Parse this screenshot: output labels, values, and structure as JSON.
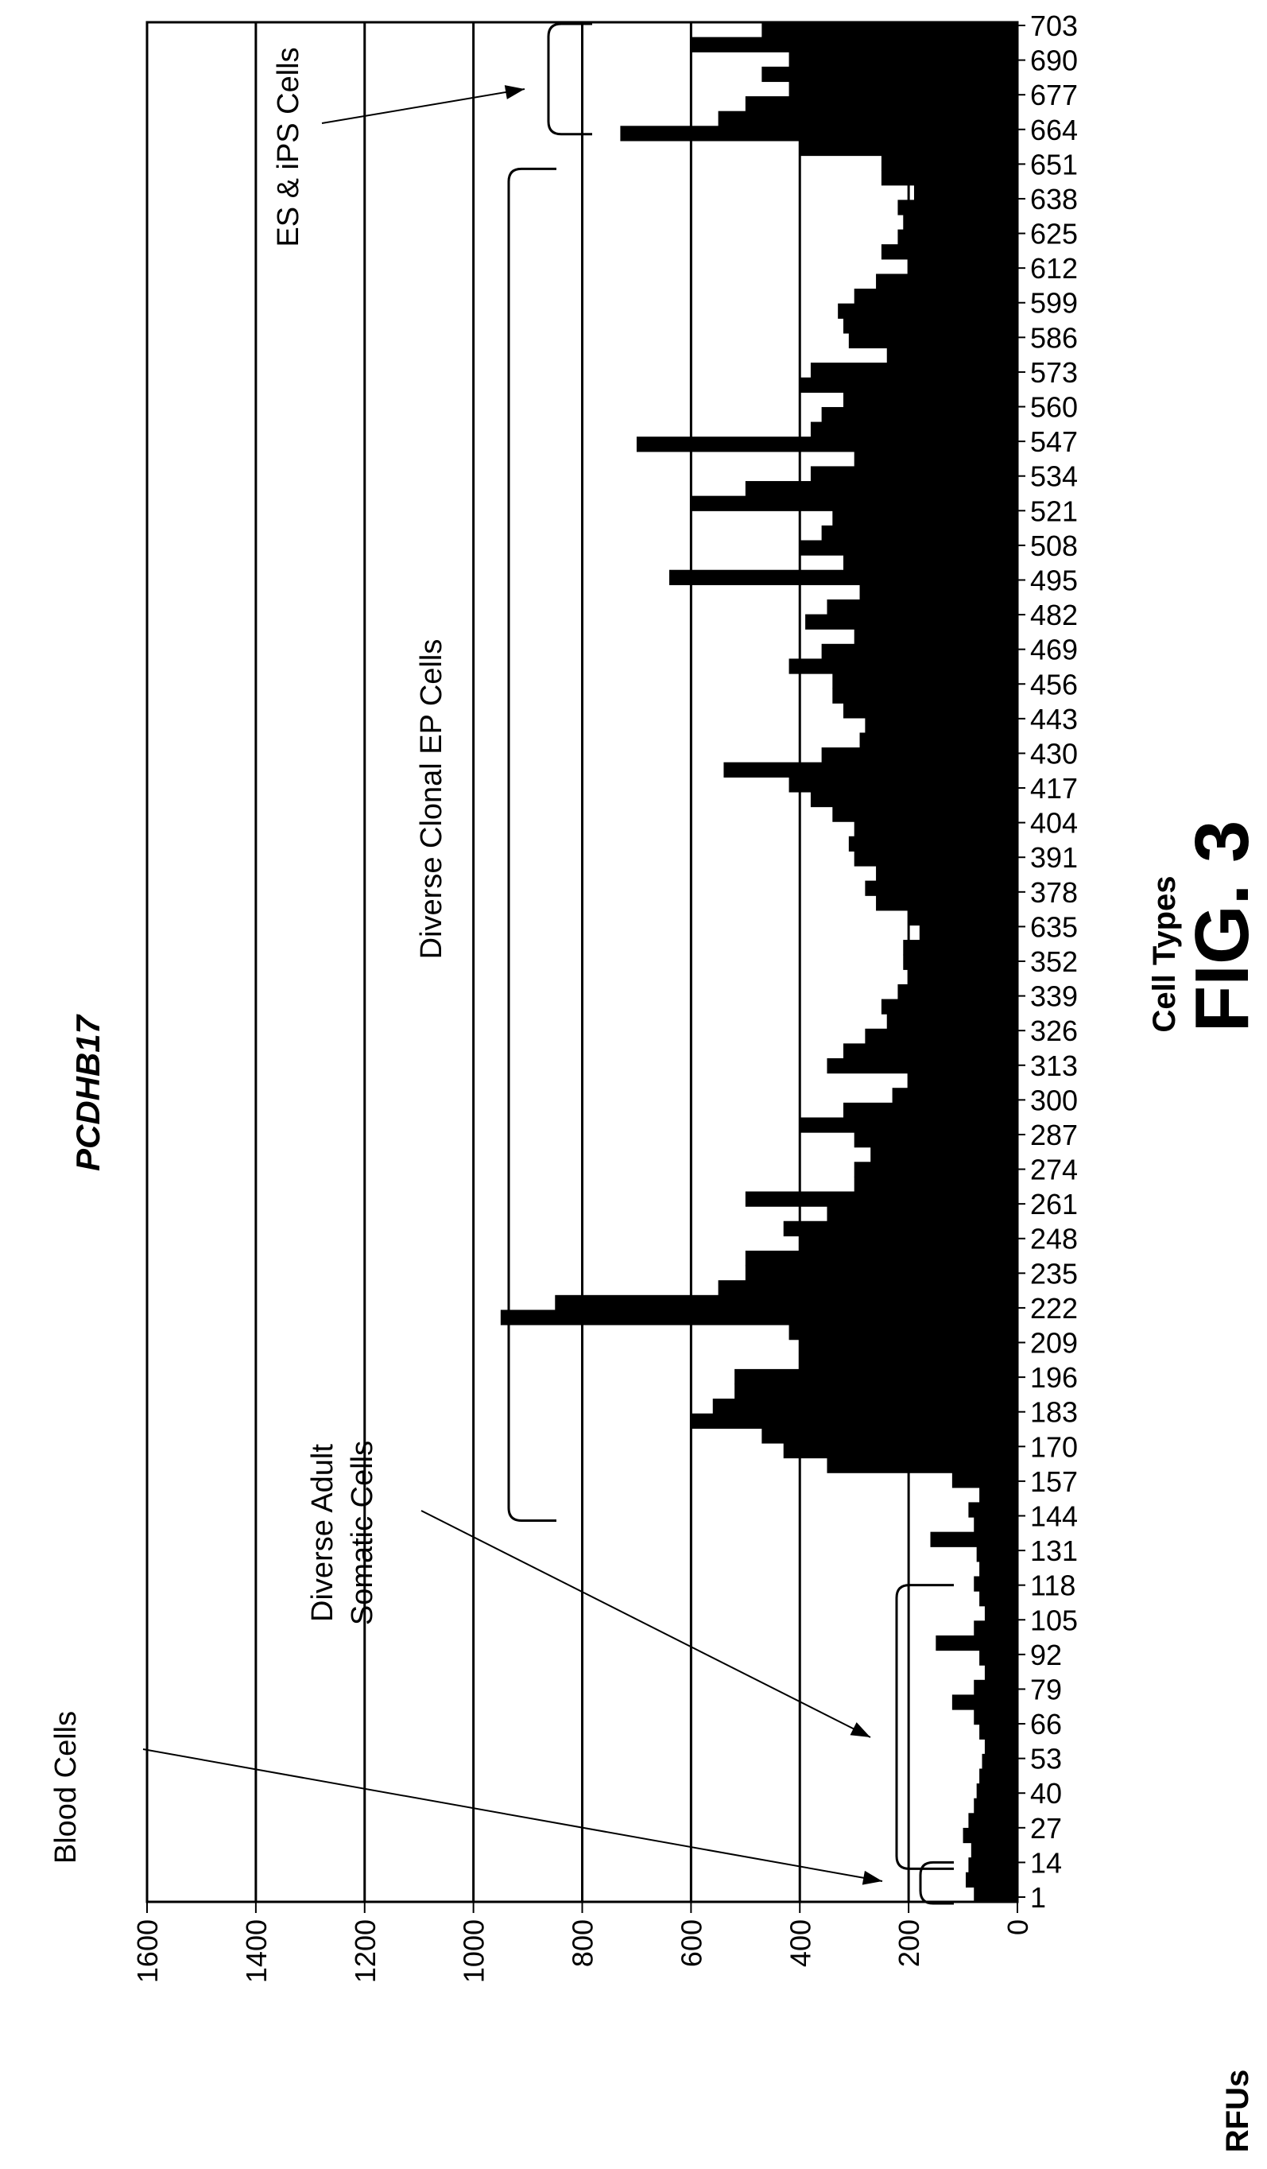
{
  "chart_data": {
    "type": "bar",
    "orientation": "rotated-90",
    "title": "PCDHB17",
    "xlabel": "Cell Types",
    "ylabel": "RFUs",
    "ylim": [
      0,
      1600
    ],
    "yticks": [
      0,
      200,
      400,
      600,
      800,
      1000,
      1200,
      1400,
      1600
    ],
    "grid": true,
    "figure_label": "FIG. 3",
    "category_tick_labels": [
      "1",
      "14",
      "27",
      "40",
      "53",
      "66",
      "79",
      "92",
      "105",
      "118",
      "131",
      "144",
      "157",
      "170",
      "183",
      "196",
      "209",
      "222",
      "235",
      "248",
      "261",
      "274",
      "287",
      "300",
      "313",
      "326",
      "339",
      "352",
      "635",
      "378",
      "391",
      "404",
      "417",
      "430",
      "443",
      "456",
      "469",
      "482",
      "495",
      "508",
      "521",
      "534",
      "547",
      "560",
      "573",
      "586",
      "599",
      "612",
      "625",
      "638",
      "651",
      "664",
      "677",
      "690",
      "703"
    ],
    "series": [
      {
        "values": [
          80,
          95,
          90,
          85,
          100,
          90,
          80,
          75,
          70,
          65,
          60,
          70,
          80,
          120,
          80,
          60,
          70,
          150,
          80,
          60,
          70,
          80,
          70,
          75,
          160,
          80,
          90,
          70,
          120,
          350,
          430,
          470,
          600,
          560,
          520,
          520,
          400,
          400,
          420,
          950,
          850,
          550,
          500,
          500,
          400,
          430,
          350,
          500,
          300,
          300,
          270,
          300,
          400,
          320,
          230,
          200,
          350,
          320,
          280,
          240,
          250,
          220,
          200,
          210,
          210,
          180,
          200,
          260,
          280,
          260,
          300,
          310,
          300,
          340,
          380,
          420,
          540,
          360,
          290,
          280,
          320,
          340,
          340,
          420,
          360,
          300,
          390,
          350,
          290,
          640,
          320,
          400,
          360,
          340,
          600,
          500,
          380,
          300,
          700,
          380,
          360,
          320,
          400,
          380,
          240,
          310,
          320,
          330,
          300,
          260,
          200,
          250,
          220,
          210,
          220,
          190,
          250,
          250,
          400,
          730,
          550,
          500,
          420,
          470,
          420,
          600,
          470
        ]
      }
    ],
    "annotations": [
      {
        "text": "Blood Cells",
        "range": [
          1,
          14
        ]
      },
      {
        "text": "Diverse Adult",
        "text2": "Somatic Cells",
        "range": [
          14,
          118
        ]
      },
      {
        "text": "Diverse Clonal EP Cells",
        "range": [
          144,
          651
        ]
      },
      {
        "text": "ES & iPS Cells",
        "range": [
          664,
          703
        ]
      }
    ]
  }
}
